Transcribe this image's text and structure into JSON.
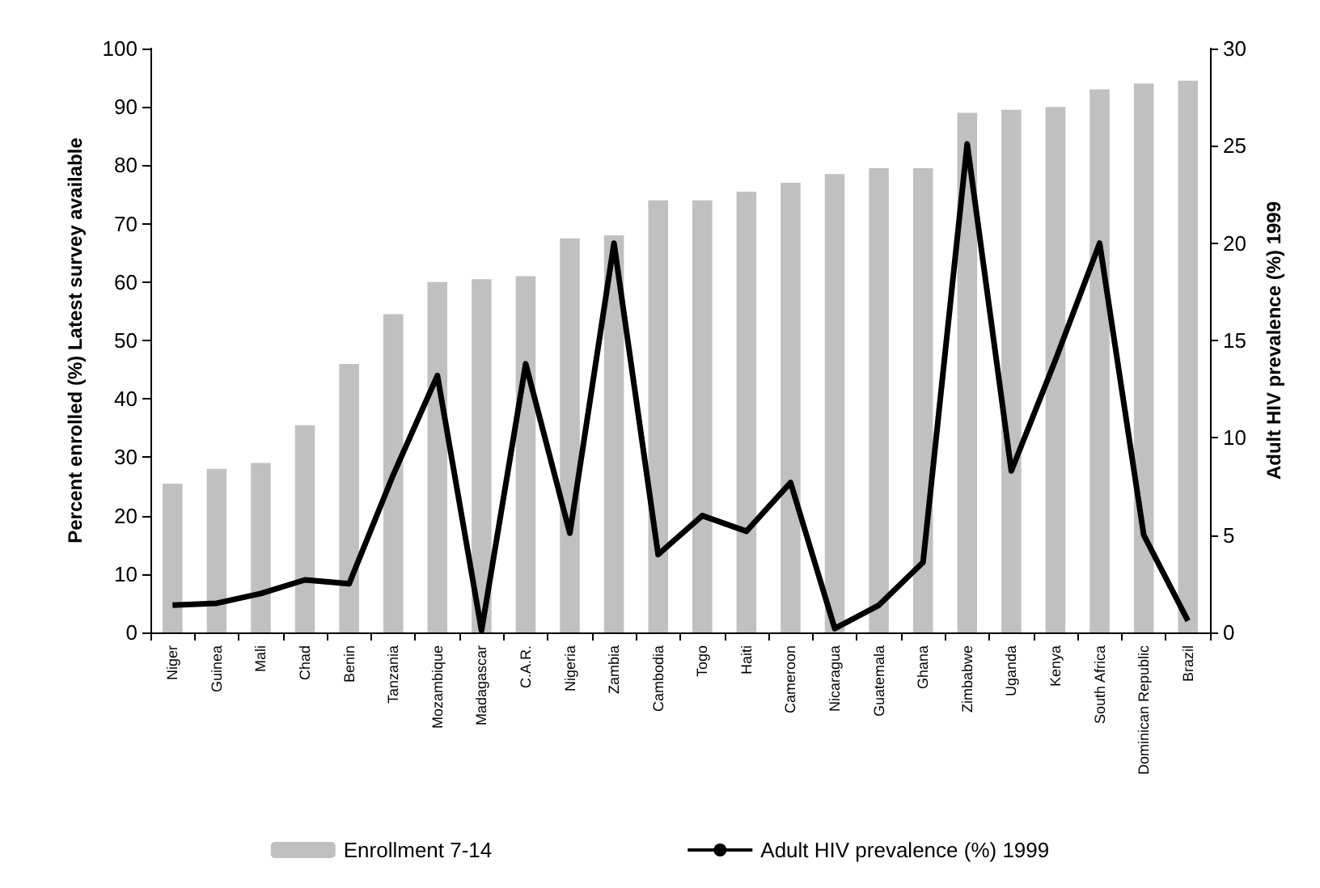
{
  "chart_data": {
    "type": "bar",
    "ylabel": "Percent enrolled (%) Latest survey available",
    "y2label": "Adult HIV prevalence (%) 1999",
    "categories": [
      "Niger",
      "Guinea",
      "Mali",
      "Chad",
      "Benin",
      "Tanzania",
      "Mozambique",
      "Madagascar",
      "C.A.R.",
      "Nigeria",
      "Zambia",
      "Cambodia",
      "Togo",
      "Haiti",
      "Cameroon",
      "Nicaragua",
      "Guatemala",
      "Ghana",
      "Zimbabwe",
      "Uganda",
      "Kenya",
      "South Africa",
      "Dominican Republic",
      "Brazil"
    ],
    "series": [
      {
        "name": "Enrollment 7-14",
        "color": "#c0c0c0",
        "values": [
          25.5,
          28,
          29,
          35.5,
          46,
          54.5,
          60,
          60.5,
          61,
          67.5,
          68,
          74,
          74,
          75.5,
          77,
          78.5,
          79.5,
          79.5,
          89,
          89.5,
          90,
          93,
          94,
          94.5
        ]
      },
      {
        "name": "Adult HIV prevalence (%) 1999",
        "type": "line",
        "axis": "y2",
        "color": "#000000",
        "values": [
          1.4,
          1.5,
          2.0,
          2.7,
          2.5,
          8.1,
          13.2,
          0.1,
          13.8,
          5.1,
          20,
          4.0,
          6.0,
          5.2,
          7.7,
          0.2,
          1.4,
          3.6,
          25.1,
          8.3,
          14,
          20,
          5.0,
          0.6
        ]
      }
    ],
    "ylim": [
      0,
      100
    ],
    "yticks": [
      0,
      10,
      20,
      30,
      40,
      50,
      60,
      70,
      80,
      90,
      100
    ],
    "y2lim": [
      0,
      30
    ],
    "y2ticks": [
      0,
      5,
      10,
      15,
      20,
      25,
      30
    ],
    "grid": false,
    "legend": "bottom",
    "marker": "none",
    "line_style": "solid"
  }
}
